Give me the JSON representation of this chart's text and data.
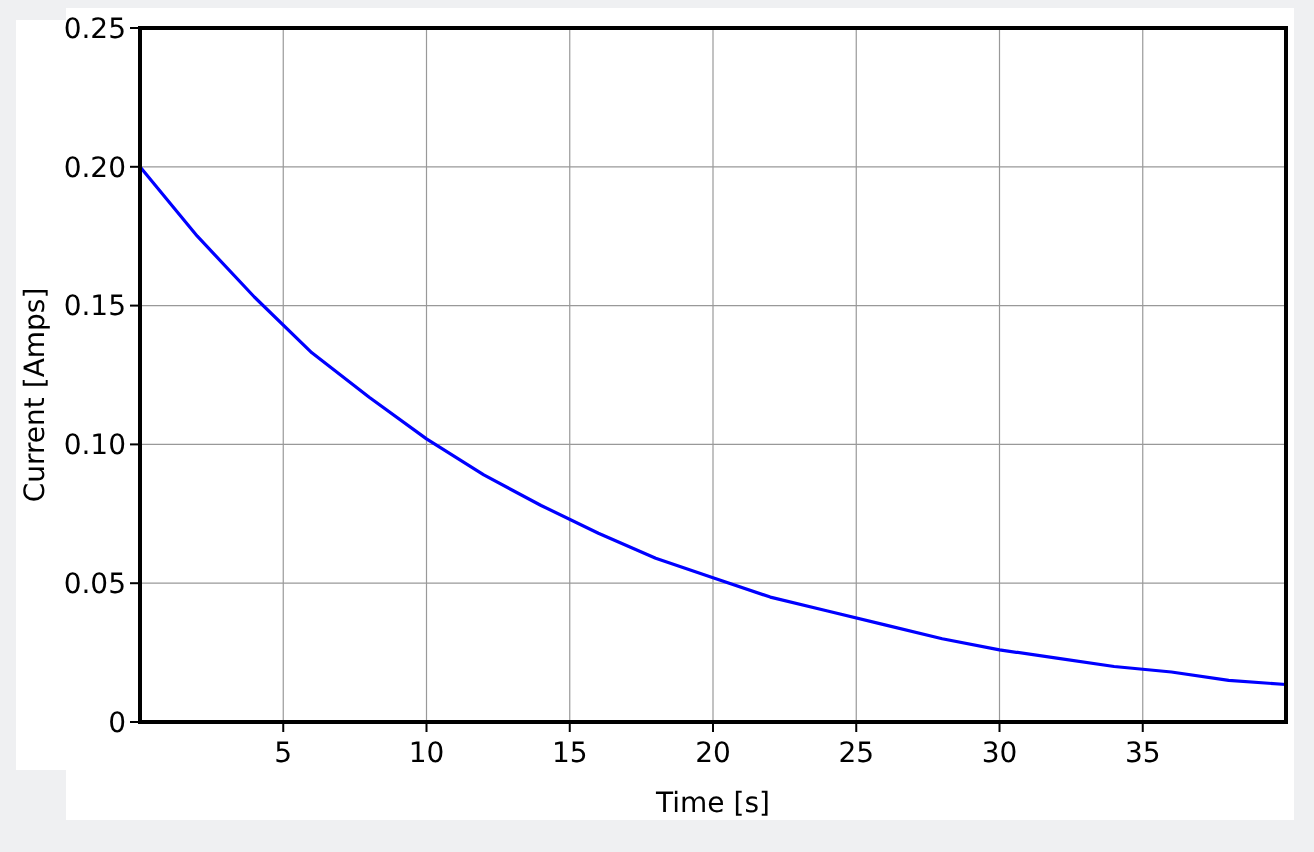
{
  "chart_data": {
    "type": "line",
    "xlabel": "Time [s]",
    "ylabel": "Current [Amps]",
    "x": [
      0,
      2,
      4,
      6,
      8,
      10,
      12,
      14,
      16,
      18,
      20,
      22,
      24,
      26,
      28,
      30,
      32,
      34,
      36,
      38,
      40
    ],
    "series": [
      {
        "color": "#0000ff",
        "values": [
          0.2,
          0.175,
          0.153,
          0.133,
          0.117,
          0.102,
          0.089,
          0.078,
          0.068,
          0.059,
          0.052,
          0.045,
          0.04,
          0.035,
          0.03,
          0.026,
          0.023,
          0.02,
          0.018,
          0.015,
          0.0135
        ]
      }
    ],
    "xlim": [
      0,
      40
    ],
    "xticks": [
      5,
      10,
      15,
      20,
      25,
      30,
      35
    ],
    "ylim": [
      0,
      0.25
    ],
    "yticks": [
      {
        "value": 0,
        "label": "0"
      },
      {
        "value": 0.05,
        "label": "0.05"
      },
      {
        "value": 0.1,
        "label": "0.10"
      },
      {
        "value": 0.15,
        "label": "0.15"
      },
      {
        "value": 0.2,
        "label": "0.20"
      },
      {
        "value": 0.25,
        "label": "0.25"
      }
    ],
    "grid": true,
    "marker": "none",
    "line_style": "solid"
  }
}
